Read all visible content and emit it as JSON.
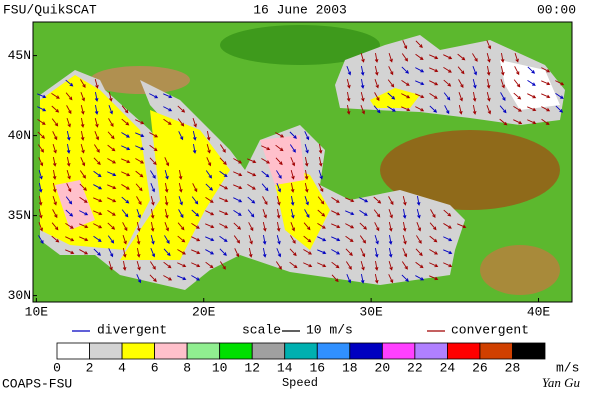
{
  "header": {
    "left": "FSU/QuikSCAT",
    "date": "16 June 2003",
    "time": "00:00"
  },
  "map": {
    "xlim": [
      9.8,
      42
    ],
    "ylim": [
      29.6,
      47.1
    ],
    "lat_ticks": [
      {
        "value": 45,
        "label": "45N"
      },
      {
        "value": 40,
        "label": "40N"
      },
      {
        "value": 35,
        "label": "35N"
      },
      {
        "value": 30,
        "label": "30N"
      }
    ],
    "lon_ticks": [
      {
        "value": 10,
        "label": "10E"
      },
      {
        "value": 20,
        "label": "20E"
      },
      {
        "value": 30,
        "label": "30E"
      },
      {
        "value": 40,
        "label": "40E"
      }
    ]
  },
  "legend": {
    "divergent": "divergent",
    "divergent_color": "#0000c0",
    "scale": "scale",
    "scale_value": "10 m/s",
    "convergent": "convergent",
    "convergent_color": "#a00000"
  },
  "colorbar": {
    "ticks": [
      0,
      2,
      4,
      6,
      8,
      10,
      12,
      14,
      16,
      18,
      20,
      22,
      24,
      26,
      28
    ],
    "colors": [
      "#ffffff",
      "#d3d3d3",
      "#ffff00",
      "#ffc0cb",
      "#90ee90",
      "#00e000",
      "#a0a0a0",
      "#00b0b0",
      "#3090ff",
      "#0000c0",
      "#ff40ff",
      "#b080ff",
      "#ff0000",
      "#d04000",
      "#000000"
    ],
    "unit": "m/s",
    "label": "Speed"
  },
  "footer": {
    "left": "COAPS-FSU",
    "right": "Yan Gu"
  }
}
